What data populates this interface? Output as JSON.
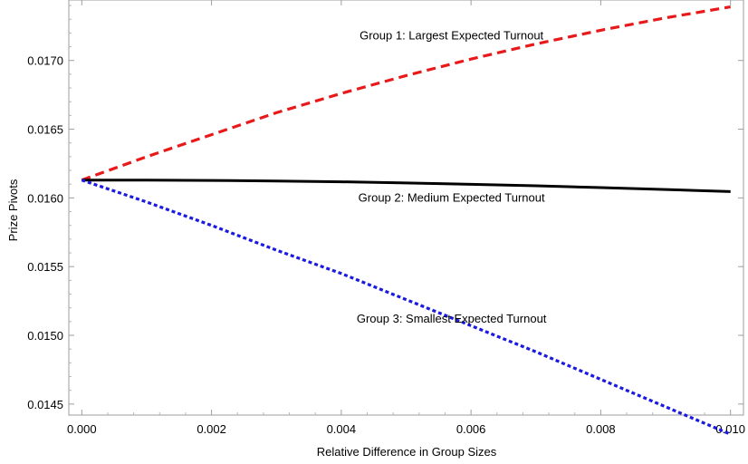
{
  "chart_data": {
    "type": "line",
    "title": "",
    "xlabel": "Relative Difference in Group Sizes",
    "ylabel": "Prize Pivots",
    "xlim": [
      -0.0002,
      0.0102
    ],
    "ylim": [
      0.01442,
      0.01744
    ],
    "x_ticks": [
      0.0,
      0.002,
      0.004,
      0.006,
      0.008,
      0.01
    ],
    "x_tick_labels": [
      "0.000",
      "0.002",
      "0.004",
      "0.006",
      "0.008",
      "0.010"
    ],
    "y_ticks": [
      0.0145,
      0.015,
      0.0155,
      0.016,
      0.0165,
      0.017
    ],
    "y_tick_labels": [
      "0.0145",
      "0.0150",
      "0.0155",
      "0.0160",
      "0.0165",
      "0.0170"
    ],
    "grid": false,
    "series": [
      {
        "name": "Group 1: Largest Expected Turnout",
        "color": "#e8191a",
        "style": "dashed",
        "x": [
          0,
          0.001,
          0.002,
          0.003,
          0.004,
          0.005,
          0.006,
          0.007,
          0.008,
          0.009,
          0.01
        ],
        "values": [
          0.01613,
          0.0163,
          0.01646,
          0.01662,
          0.01676,
          0.01689,
          0.01701,
          0.01712,
          0.01722,
          0.01731,
          0.01739
        ]
      },
      {
        "name": "Group 2: Medium Expected Turnout",
        "color": "#000000",
        "style": "solid",
        "x": [
          0,
          0.001,
          0.002,
          0.003,
          0.004,
          0.005,
          0.006,
          0.007,
          0.008,
          0.009,
          0.01
        ],
        "values": [
          0.01613,
          0.016129,
          0.016127,
          0.016123,
          0.016117,
          0.016109,
          0.016099,
          0.016088,
          0.016075,
          0.016061,
          0.016046
        ]
      },
      {
        "name": "Group 3: Smallest Expected Turnout",
        "color": "#1a1ae0",
        "style": "dotted",
        "x": [
          0,
          0.001,
          0.002,
          0.003,
          0.004,
          0.005,
          0.006,
          0.007,
          0.008,
          0.009,
          0.01
        ],
        "values": [
          0.01613,
          0.01597,
          0.0158,
          0.01562,
          0.01545,
          0.01526,
          0.01507,
          0.01488,
          0.01468,
          0.01448,
          0.01428
        ]
      }
    ],
    "annotations": [
      {
        "text": "Group 1: Largest Expected Turnout",
        "x": 0.0057,
        "y": 0.01718
      },
      {
        "text": "Group 2: Medium Expected Turnout",
        "x": 0.0057,
        "y": 0.016
      },
      {
        "text": "Group 3: Smallest Expected Turnout",
        "x": 0.0057,
        "y": 0.01512
      }
    ]
  }
}
